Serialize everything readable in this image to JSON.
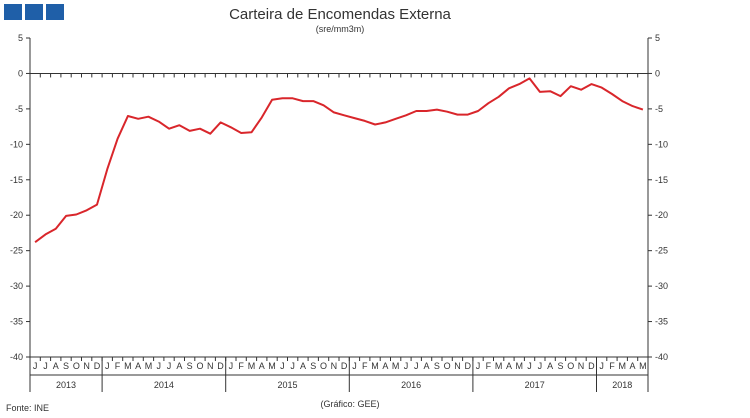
{
  "header": {
    "logo_name": "gee-logo",
    "title": "Carteira de Encomendas Externa",
    "subtitle": "(sre/mm3m)"
  },
  "footer": {
    "source": "Fonte: INE",
    "credit": "(Gráfico: GEE)"
  },
  "colors": {
    "line": "#d9262b",
    "axis": "#333333",
    "logo": "#1f5fa8"
  },
  "chart_data": {
    "type": "line",
    "title": "Carteira de Encomendas Externa",
    "subtitle": "(sre/mm3m)",
    "ylim": [
      -40,
      5
    ],
    "yticks": [
      5,
      0,
      -5,
      -10,
      -15,
      -20,
      -25,
      -30,
      -35,
      -40
    ],
    "y_axis_both_sides": true,
    "grid": false,
    "month_labels": [
      "J",
      "J",
      "A",
      "S",
      "O",
      "N",
      "D",
      "J",
      "F",
      "M",
      "A",
      "M",
      "J",
      "J",
      "A",
      "S",
      "O",
      "N",
      "D",
      "J",
      "F",
      "M",
      "A",
      "M",
      "J",
      "J",
      "A",
      "S",
      "O",
      "N",
      "D",
      "J",
      "F",
      "M",
      "A",
      "M",
      "J",
      "J",
      "A",
      "S",
      "O",
      "N",
      "D",
      "J",
      "F",
      "M",
      "A",
      "M",
      "J",
      "J",
      "A",
      "S",
      "O",
      "N",
      "D",
      "J",
      "F",
      "M",
      "A",
      "M"
    ],
    "years": [
      {
        "label": "2013",
        "start": 0,
        "end": 6
      },
      {
        "label": "2014",
        "start": 7,
        "end": 18
      },
      {
        "label": "2015",
        "start": 19,
        "end": 30
      },
      {
        "label": "2016",
        "start": 31,
        "end": 42
      },
      {
        "label": "2017",
        "start": 43,
        "end": 54
      },
      {
        "label": "2018",
        "start": 55,
        "end": 59
      }
    ],
    "series": [
      {
        "values": [
          -23.8,
          -22.7,
          -21.9,
          -20.1,
          -19.9,
          -19.3,
          -18.5,
          -13.5,
          -9.2,
          -6.0,
          -6.4,
          -6.1,
          -6.8,
          -7.8,
          -7.3,
          -8.1,
          -7.8,
          -8.5,
          -6.9,
          -7.6,
          -8.4,
          -8.3,
          -6.2,
          -3.7,
          -3.5,
          -3.5,
          -3.9,
          -3.9,
          -4.5,
          -5.5,
          -5.9,
          -6.3,
          -6.7,
          -7.2,
          -6.9,
          -6.4,
          -5.9,
          -5.3,
          -5.3,
          -5.1,
          -5.4,
          -5.8,
          -5.8,
          -5.3,
          -4.2,
          -3.3,
          -2.1,
          -1.5,
          -0.7,
          -2.6,
          -2.5,
          -3.2,
          -1.8,
          -2.3,
          -1.5,
          -2.0,
          -2.9,
          -3.9,
          -4.6,
          -5.1
        ]
      }
    ]
  }
}
